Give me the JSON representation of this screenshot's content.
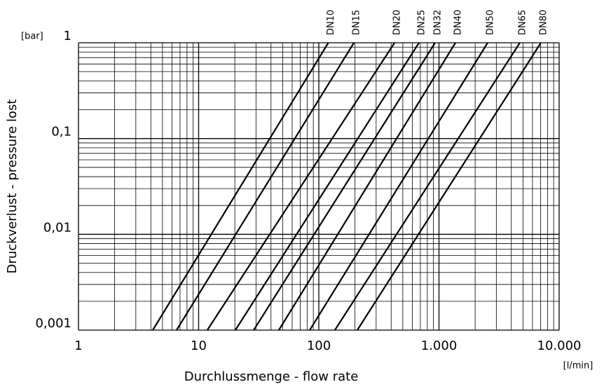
{
  "chart_data": {
    "type": "line",
    "y_label": "Druckverlust - pressure lost",
    "x_label": "Durchlussmenge - flow rate",
    "y_unit": "[bar]",
    "x_unit": "[l/min]",
    "log_x": true,
    "log_y": true,
    "grid": true,
    "color": "#000000",
    "xlim": [
      1,
      10000
    ],
    "ylim": [
      0.001,
      1
    ],
    "xticks": [
      1,
      10,
      100,
      {
        "value": 1000,
        "label": "1.000"
      },
      {
        "value": 10000,
        "label": "10.000"
      }
    ],
    "yticks": [
      {
        "value": 0.001,
        "label": "0,001"
      },
      {
        "value": 0.01,
        "label": "0,01"
      },
      {
        "value": 0.1,
        "label": "0,1"
      },
      1
    ],
    "xminor": [
      2,
      3,
      4,
      5,
      6,
      7,
      8,
      9,
      20,
      30,
      40,
      50,
      60,
      70,
      80,
      90,
      200,
      300,
      400,
      500,
      600,
      700,
      800,
      900,
      2000,
      3000,
      4000,
      5000,
      6000,
      7000,
      8000,
      9000
    ],
    "yminor": [
      0.002,
      0.003,
      0.004,
      0.005,
      0.006,
      0.007,
      0.008,
      0.009,
      0.02,
      0.03,
      0.04,
      0.05,
      0.06,
      0.07,
      0.08,
      0.09,
      0.2,
      0.3,
      0.4,
      0.5,
      0.6,
      0.7,
      0.8,
      0.9
    ],
    "series": [
      {
        "name": "DN10",
        "x": [
          4.15,
          120
        ],
        "values": [
          0.001,
          1
        ]
      },
      {
        "name": "DN15",
        "x": [
          6.55,
          196
        ],
        "values": [
          0.001,
          1
        ]
      },
      {
        "name": "DN20",
        "x": [
          11.8,
          427
        ],
        "values": [
          0.001,
          1
        ]
      },
      {
        "name": "DN25",
        "x": [
          20.2,
          682
        ],
        "values": [
          0.001,
          1
        ]
      },
      {
        "name": "DN32",
        "x": [
          28.7,
          929
        ],
        "values": [
          0.001,
          1
        ]
      },
      {
        "name": "DN40",
        "x": [
          46.5,
          1371
        ],
        "values": [
          0.001,
          1
        ]
      },
      {
        "name": "DN50",
        "x": [
          84,
          2542
        ],
        "values": [
          0.001,
          1
        ]
      },
      {
        "name": "DN65",
        "x": [
          136,
          4710
        ],
        "values": [
          0.001,
          1
        ]
      },
      {
        "name": "DN80",
        "x": [
          209,
          7050
        ],
        "values": [
          0.001,
          1
        ]
      }
    ]
  }
}
